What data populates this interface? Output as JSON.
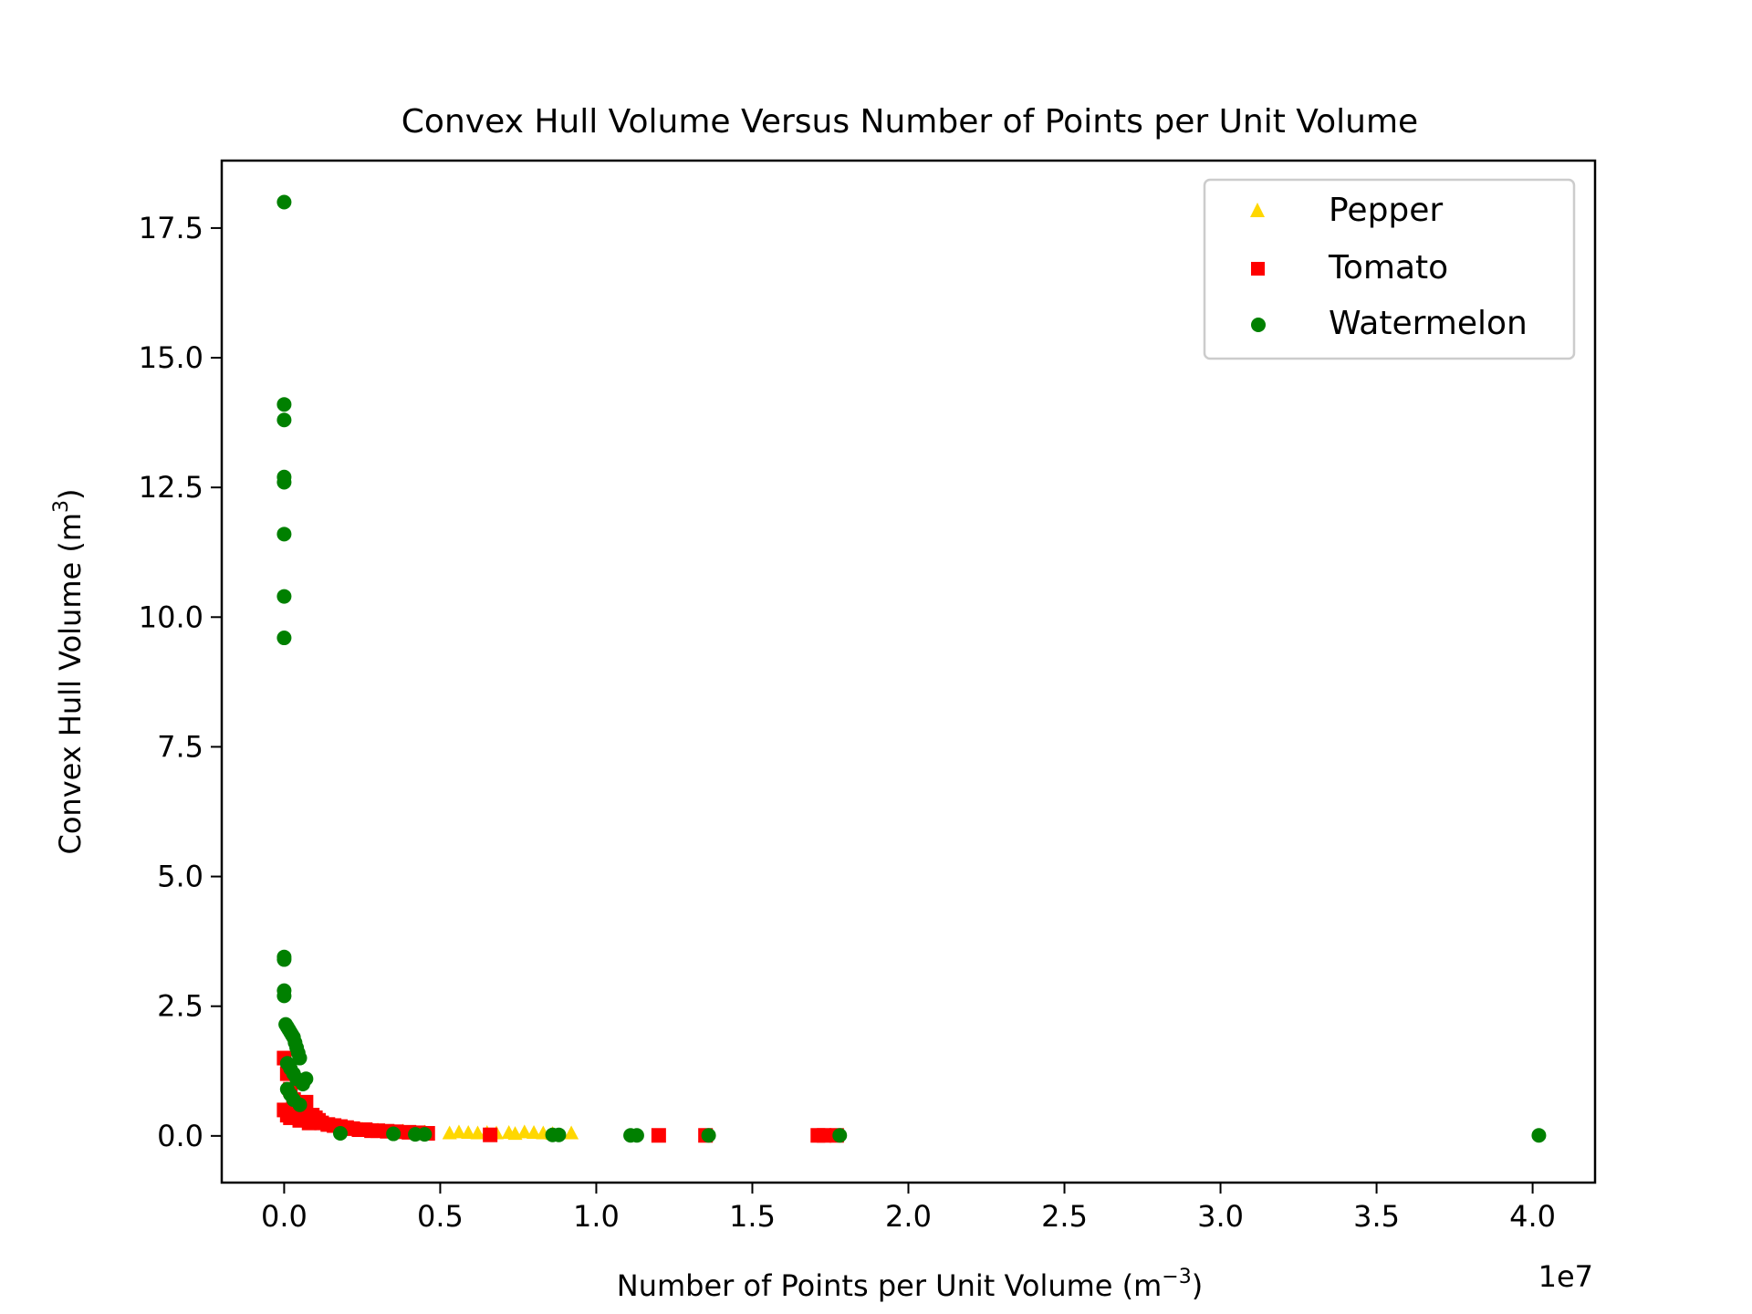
{
  "chart_data": {
    "type": "scatter",
    "title": "Convex Hull Volume Versus Number of Points per Unit Volume",
    "xlabel": "Number of Points per Unit Volume (m",
    "xlabel_sup": "−3",
    "xlabel_tail": ")",
    "ylabel": "Convex Hull Volume (m",
    "ylabel_sup": "3",
    "ylabel_tail": ")",
    "x_offset_text": "1e7",
    "xlim": [
      -0.2,
      4.2
    ],
    "ylim": [
      -0.9,
      18.8
    ],
    "x_ticks": [
      0.0,
      0.5,
      1.0,
      1.5,
      2.0,
      2.5,
      3.0,
      3.5,
      4.0
    ],
    "x_tick_labels": [
      "0.0",
      "0.5",
      "1.0",
      "1.5",
      "2.0",
      "2.5",
      "3.0",
      "3.5",
      "4.0"
    ],
    "y_ticks": [
      0.0,
      2.5,
      5.0,
      7.5,
      10.0,
      12.5,
      15.0,
      17.5
    ],
    "y_tick_labels": [
      "0.0",
      "2.5",
      "5.0",
      "7.5",
      "10.0",
      "12.5",
      "15.0",
      "17.5"
    ],
    "grid": false,
    "legend_position": "top-right",
    "series": [
      {
        "name": "Pepper",
        "marker": "triangle",
        "color": "#ffd700",
        "x": [
          0.53,
          0.56,
          0.59,
          0.62,
          0.65,
          0.68,
          0.72,
          0.74,
          0.77,
          0.8,
          0.83,
          0.86,
          0.92,
          0.12,
          0.15,
          0.2,
          0.25,
          0.3,
          0.38,
          0.45
        ],
        "y": [
          0.04,
          0.06,
          0.05,
          0.04,
          0.05,
          0.04,
          0.05,
          0.03,
          0.06,
          0.05,
          0.04,
          0.03,
          0.04,
          0.25,
          0.2,
          0.15,
          0.12,
          0.1,
          0.08,
          0.06
        ]
      },
      {
        "name": "Tomato",
        "marker": "square",
        "color": "#ff0000",
        "x": [
          0.0,
          0.0,
          0.01,
          0.01,
          0.02,
          0.02,
          0.03,
          0.04,
          0.05,
          0.06,
          0.07,
          0.08,
          0.09,
          0.1,
          0.11,
          0.12,
          0.14,
          0.16,
          0.18,
          0.2,
          0.22,
          0.24,
          0.26,
          0.28,
          0.3,
          0.33,
          0.36,
          0.4,
          0.43,
          0.46,
          0.66,
          1.2,
          1.35,
          1.71,
          1.73,
          1.77
        ],
        "y": [
          1.5,
          0.5,
          1.2,
          0.4,
          0.9,
          0.35,
          0.7,
          0.6,
          0.3,
          0.5,
          0.65,
          0.25,
          0.4,
          0.35,
          0.3,
          0.25,
          0.22,
          0.2,
          0.18,
          0.16,
          0.14,
          0.12,
          0.12,
          0.1,
          0.1,
          0.09,
          0.08,
          0.07,
          0.06,
          0.05,
          0.02,
          0.01,
          0.01,
          0.01,
          0.01,
          0.01
        ]
      },
      {
        "name": "Watermelon",
        "marker": "circle",
        "color": "#008000",
        "x": [
          0.0,
          0.0,
          0.0,
          0.0,
          0.0,
          0.0,
          0.0,
          0.0,
          0.0,
          0.0,
          0.0,
          0.0,
          0.005,
          0.01,
          0.015,
          0.02,
          0.025,
          0.03,
          0.035,
          0.04,
          0.045,
          0.05,
          0.01,
          0.02,
          0.03,
          0.04,
          0.06,
          0.07,
          0.01,
          0.02,
          0.03,
          0.05,
          0.18,
          0.35,
          0.42,
          0.45,
          0.86,
          0.88,
          1.11,
          1.13,
          1.36,
          1.78,
          4.02
        ],
        "y": [
          18.0,
          14.1,
          13.8,
          12.7,
          12.6,
          11.6,
          10.4,
          9.6,
          3.45,
          3.4,
          2.8,
          2.7,
          2.15,
          2.1,
          2.05,
          2.0,
          1.95,
          1.9,
          1.8,
          1.7,
          1.6,
          1.5,
          1.4,
          1.3,
          1.2,
          1.1,
          1.0,
          1.1,
          0.9,
          0.8,
          0.7,
          0.6,
          0.05,
          0.04,
          0.03,
          0.03,
          0.02,
          0.02,
          0.01,
          0.01,
          0.01,
          0.01,
          0.01
        ]
      }
    ]
  }
}
